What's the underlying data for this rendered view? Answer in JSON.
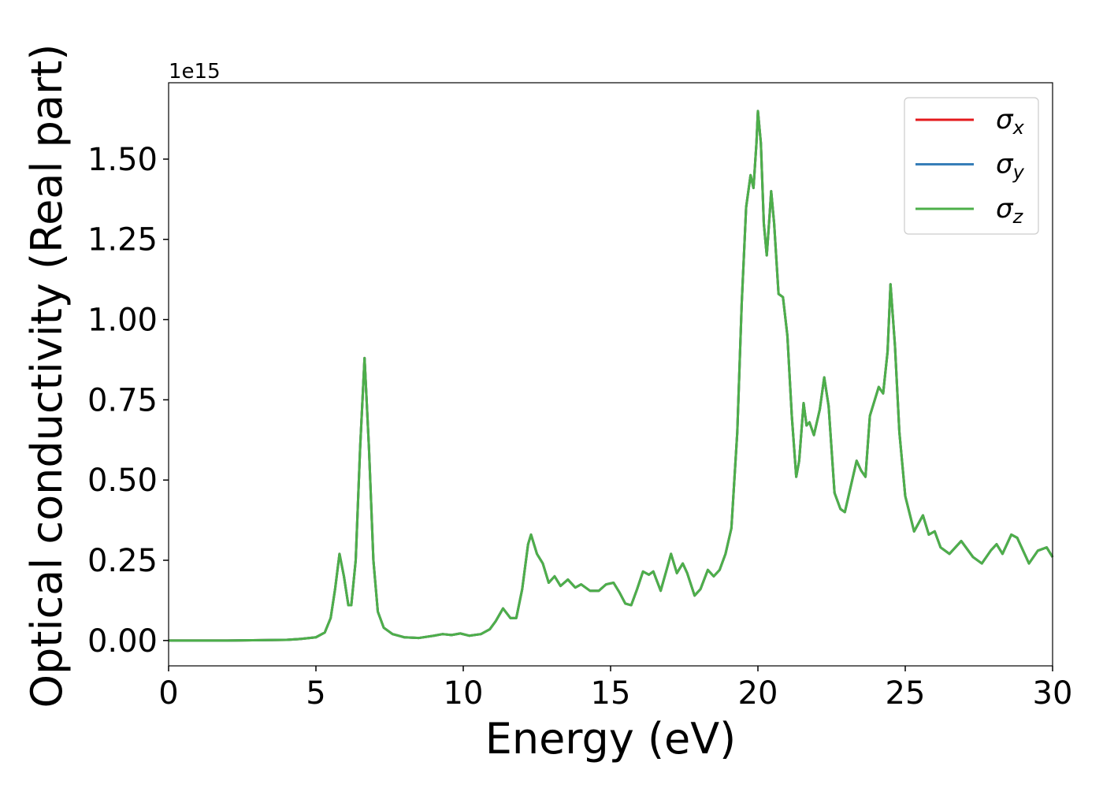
{
  "chart_data": {
    "type": "line",
    "xlabel": "Energy (eV)",
    "ylabel": "Optical conductivity (Real part)",
    "offset_text": "1e15",
    "xlim": [
      0,
      30
    ],
    "xticks": [
      0,
      5,
      10,
      15,
      20,
      25,
      30
    ],
    "ylim": [
      -0.079,
      1.738
    ],
    "yticks": [
      {
        "value": 0,
        "label": "0.00"
      },
      {
        "value": 0.25,
        "label": "0.25"
      },
      {
        "value": 0.5,
        "label": "0.50"
      },
      {
        "value": 0.75,
        "label": "0.75"
      },
      {
        "value": 1,
        "label": "1.00"
      },
      {
        "value": 1.25,
        "label": "1.25"
      },
      {
        "value": 1.5,
        "label": "1.50"
      }
    ],
    "legend": "upper right",
    "grid": false,
    "x": [
      0,
      2,
      4,
      4.5,
      5,
      5.3,
      5.5,
      5.65,
      5.8,
      5.95,
      6.1,
      6.2,
      6.35,
      6.5,
      6.65,
      6.8,
      6.95,
      7.1,
      7.3,
      7.6,
      8,
      8.5,
      9,
      9.3,
      9.6,
      9.9,
      10.2,
      10.6,
      10.9,
      11.1,
      11.35,
      11.6,
      11.8,
      12,
      12.2,
      12.3,
      12.5,
      12.7,
      12.9,
      13.1,
      13.3,
      13.55,
      13.8,
      14,
      14.3,
      14.6,
      14.85,
      15.1,
      15.3,
      15.5,
      15.7,
      15.9,
      16.1,
      16.3,
      16.45,
      16.7,
      16.9,
      17.05,
      17.25,
      17.45,
      17.6,
      17.85,
      18.05,
      18.3,
      18.5,
      18.7,
      18.9,
      19.1,
      19.3,
      19.45,
      19.6,
      19.75,
      19.85,
      19.95,
      20,
      20.1,
      20.2,
      20.3,
      20.4,
      20.45,
      20.55,
      20.7,
      20.85,
      21,
      21.15,
      21.3,
      21.4,
      21.55,
      21.65,
      21.75,
      21.9,
      22.1,
      22.25,
      22.4,
      22.6,
      22.8,
      22.95,
      23.2,
      23.35,
      23.5,
      23.65,
      23.8,
      24,
      24.1,
      24.25,
      24.4,
      24.5,
      24.65,
      24.8,
      25,
      25.3,
      25.6,
      25.8,
      26,
      26.2,
      26.5,
      26.9,
      27.3,
      27.6,
      27.9,
      28.1,
      28.3,
      28.6,
      28.8,
      29.2,
      29.5,
      29.8,
      30
    ],
    "series": [
      {
        "name": "σx",
        "color": "#e41a1c",
        "values": [
          0,
          0,
          0.002,
          0.005,
          0.01,
          0.025,
          0.07,
          0.16,
          0.27,
          0.2,
          0.11,
          0.11,
          0.25,
          0.6,
          0.88,
          0.6,
          0.25,
          0.09,
          0.04,
          0.02,
          0.01,
          0.008,
          0.015,
          0.02,
          0.017,
          0.022,
          0.015,
          0.02,
          0.035,
          0.06,
          0.1,
          0.07,
          0.07,
          0.16,
          0.3,
          0.33,
          0.27,
          0.24,
          0.18,
          0.2,
          0.17,
          0.19,
          0.165,
          0.175,
          0.155,
          0.155,
          0.175,
          0.18,
          0.15,
          0.115,
          0.11,
          0.16,
          0.215,
          0.205,
          0.215,
          0.155,
          0.22,
          0.27,
          0.21,
          0.24,
          0.21,
          0.14,
          0.16,
          0.22,
          0.2,
          0.22,
          0.27,
          0.35,
          0.65,
          1.05,
          1.35,
          1.45,
          1.41,
          1.55,
          1.65,
          1.55,
          1.3,
          1.2,
          1.33,
          1.4,
          1.3,
          1.08,
          1.07,
          0.95,
          0.7,
          0.51,
          0.56,
          0.74,
          0.67,
          0.68,
          0.64,
          0.72,
          0.82,
          0.73,
          0.46,
          0.41,
          0.4,
          0.5,
          0.56,
          0.53,
          0.51,
          0.7,
          0.76,
          0.79,
          0.77,
          0.9,
          1.11,
          0.92,
          0.65,
          0.45,
          0.34,
          0.39,
          0.33,
          0.34,
          0.29,
          0.27,
          0.31,
          0.26,
          0.24,
          0.28,
          0.3,
          0.27,
          0.33,
          0.32,
          0.24,
          0.28,
          0.29,
          0.26
        ]
      },
      {
        "name": "σy",
        "color": "#377eb8",
        "values": [
          0,
          0,
          0.002,
          0.005,
          0.01,
          0.025,
          0.07,
          0.16,
          0.27,
          0.2,
          0.11,
          0.11,
          0.25,
          0.6,
          0.88,
          0.6,
          0.25,
          0.09,
          0.04,
          0.02,
          0.01,
          0.008,
          0.015,
          0.02,
          0.017,
          0.022,
          0.015,
          0.02,
          0.035,
          0.06,
          0.1,
          0.07,
          0.07,
          0.16,
          0.3,
          0.33,
          0.27,
          0.24,
          0.18,
          0.2,
          0.17,
          0.19,
          0.165,
          0.175,
          0.155,
          0.155,
          0.175,
          0.18,
          0.15,
          0.115,
          0.11,
          0.16,
          0.215,
          0.205,
          0.215,
          0.155,
          0.22,
          0.27,
          0.21,
          0.24,
          0.21,
          0.14,
          0.16,
          0.22,
          0.2,
          0.22,
          0.27,
          0.35,
          0.65,
          1.05,
          1.35,
          1.45,
          1.41,
          1.55,
          1.65,
          1.55,
          1.3,
          1.2,
          1.33,
          1.4,
          1.3,
          1.08,
          1.07,
          0.95,
          0.7,
          0.51,
          0.56,
          0.74,
          0.67,
          0.68,
          0.64,
          0.72,
          0.82,
          0.73,
          0.46,
          0.41,
          0.4,
          0.5,
          0.56,
          0.53,
          0.51,
          0.7,
          0.76,
          0.79,
          0.77,
          0.9,
          1.11,
          0.92,
          0.65,
          0.45,
          0.34,
          0.39,
          0.33,
          0.34,
          0.29,
          0.27,
          0.31,
          0.26,
          0.24,
          0.28,
          0.3,
          0.27,
          0.33,
          0.32,
          0.24,
          0.28,
          0.29,
          0.26
        ]
      },
      {
        "name": "σz",
        "color": "#4daf4a",
        "values": [
          0,
          0,
          0.002,
          0.005,
          0.01,
          0.025,
          0.07,
          0.16,
          0.27,
          0.2,
          0.11,
          0.11,
          0.25,
          0.6,
          0.88,
          0.6,
          0.25,
          0.09,
          0.04,
          0.02,
          0.01,
          0.008,
          0.015,
          0.02,
          0.017,
          0.022,
          0.015,
          0.02,
          0.035,
          0.06,
          0.1,
          0.07,
          0.07,
          0.16,
          0.3,
          0.33,
          0.27,
          0.24,
          0.18,
          0.2,
          0.17,
          0.19,
          0.165,
          0.175,
          0.155,
          0.155,
          0.175,
          0.18,
          0.15,
          0.115,
          0.11,
          0.16,
          0.215,
          0.205,
          0.215,
          0.155,
          0.22,
          0.27,
          0.21,
          0.24,
          0.21,
          0.14,
          0.16,
          0.22,
          0.2,
          0.22,
          0.27,
          0.35,
          0.65,
          1.05,
          1.35,
          1.45,
          1.41,
          1.55,
          1.65,
          1.55,
          1.3,
          1.2,
          1.33,
          1.4,
          1.3,
          1.08,
          1.07,
          0.95,
          0.7,
          0.51,
          0.56,
          0.74,
          0.67,
          0.68,
          0.64,
          0.72,
          0.82,
          0.73,
          0.46,
          0.41,
          0.4,
          0.5,
          0.56,
          0.53,
          0.51,
          0.7,
          0.76,
          0.79,
          0.77,
          0.9,
          1.11,
          0.92,
          0.65,
          0.45,
          0.34,
          0.39,
          0.33,
          0.34,
          0.29,
          0.27,
          0.31,
          0.26,
          0.24,
          0.28,
          0.3,
          0.27,
          0.33,
          0.32,
          0.24,
          0.28,
          0.29,
          0.26
        ]
      }
    ]
  }
}
